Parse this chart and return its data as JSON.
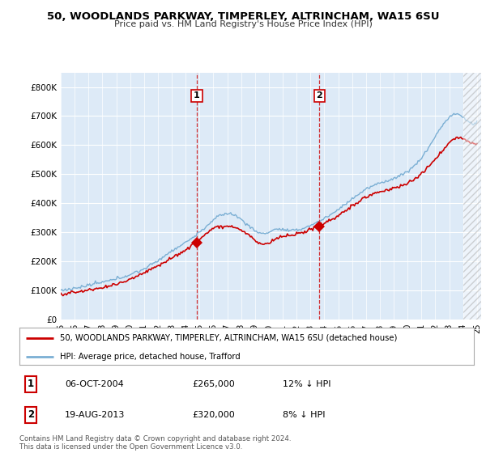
{
  "title": "50, WOODLANDS PARKWAY, TIMPERLEY, ALTRINCHAM, WA15 6SU",
  "subtitle": "Price paid vs. HM Land Registry's House Price Index (HPI)",
  "ylim": [
    0,
    850000
  ],
  "yticks": [
    0,
    100000,
    200000,
    300000,
    400000,
    500000,
    600000,
    700000,
    800000
  ],
  "ytick_labels": [
    "£0",
    "£100K",
    "£200K",
    "£300K",
    "£400K",
    "£500K",
    "£600K",
    "£700K",
    "£800K"
  ],
  "hpi_color": "#7bafd4",
  "hpi_fill_color": "#ddeaf7",
  "price_color": "#cc0000",
  "sale1_year": 2004.8,
  "sale1_price": 265000,
  "sale2_year": 2013.65,
  "sale2_price": 320000,
  "annotation1_date": "06-OCT-2004",
  "annotation1_price": "£265,000",
  "annotation1_hpi": "12% ↓ HPI",
  "annotation2_date": "19-AUG-2013",
  "annotation2_price": "£320,000",
  "annotation2_hpi": "8% ↓ HPI",
  "legend_label1": "50, WOODLANDS PARKWAY, TIMPERLEY, ALTRINCHAM, WA15 6SU (detached house)",
  "legend_label2": "HPI: Average price, detached house, Trafford",
  "footer": "Contains HM Land Registry data © Crown copyright and database right 2024.\nThis data is licensed under the Open Government Licence v3.0.",
  "bg_color": "#ddeaf7",
  "grid_color": "#ffffff",
  "hatch_color": "#cccccc"
}
